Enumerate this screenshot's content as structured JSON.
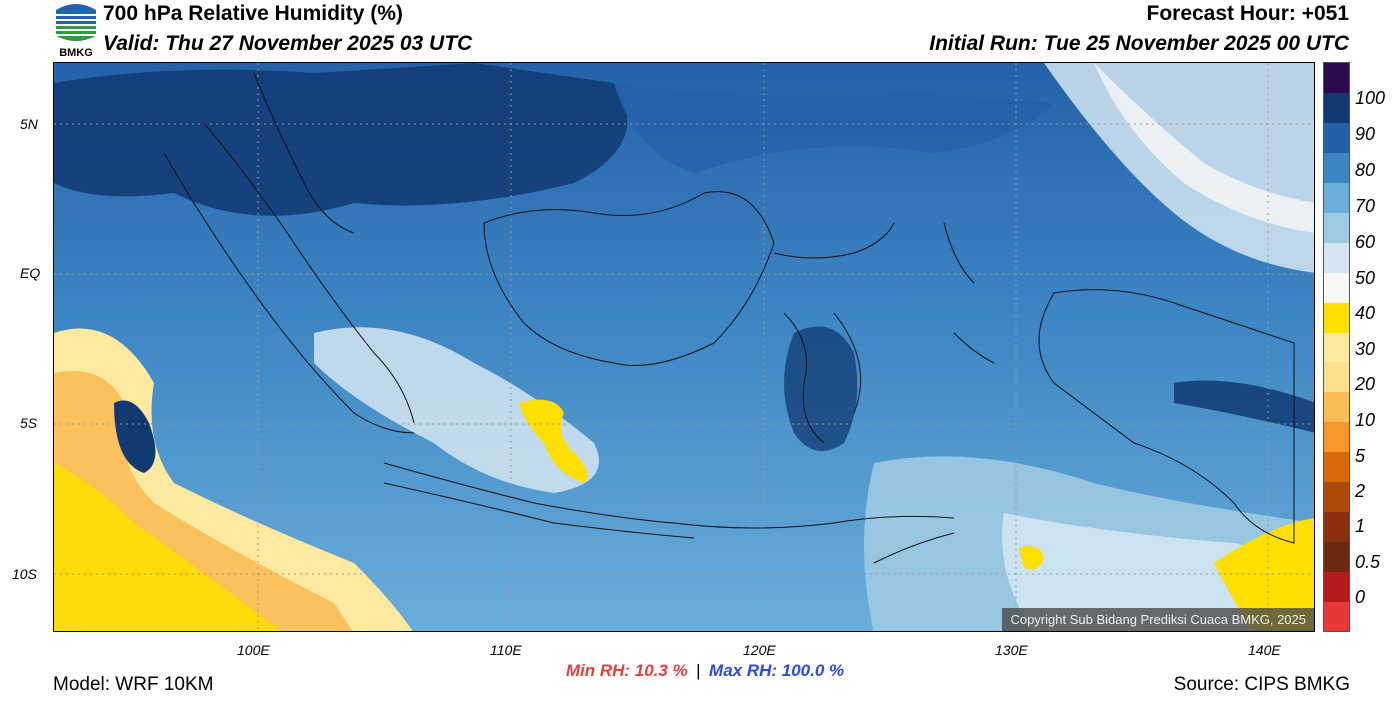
{
  "header": {
    "title": "700 hPa Relative Humidity (%)",
    "valid": "Valid: Thu 27 November 2025 03 UTC",
    "forecast_hour": "Forecast Hour: +051",
    "initial_run": "Initial Run: Tue 25 November 2025 00 UTC"
  },
  "logo": {
    "text": "BMKG"
  },
  "map": {
    "lat_labels": [
      "5N",
      "EQ",
      "5S",
      "10S"
    ],
    "lon_labels": [
      "100E",
      "110E",
      "120E",
      "130E",
      "140E"
    ],
    "copyright": "Copyright Sub Bidang Prediksi Cuaca BMKG, 2025"
  },
  "colorbar": {
    "labels": [
      "100",
      "90",
      "80",
      "70",
      "60",
      "50",
      "40",
      "30",
      "20",
      "10",
      "5",
      "2",
      "1",
      "0.5",
      "0"
    ],
    "colors": [
      "#e8383a",
      "#b51a1c",
      "#6e2810",
      "#8a3010",
      "#b04a0c",
      "#d86a0a",
      "#f7962a",
      "#fbbd55",
      "#fde08e",
      "#fdeaa0",
      "#fddf00",
      "#f7f7f7",
      "#d5e6f2",
      "#9ccae2",
      "#6aaedb",
      "#3d86c4",
      "#2561a9",
      "#113a73",
      "#2b0a4d"
    ]
  },
  "stats": {
    "min_label": "Min RH:  10.3 %",
    "separator": "|",
    "max_label": "Max RH: 100.0 %",
    "min_color": "#e83e3e",
    "max_color": "#2a4ae0"
  },
  "footer": {
    "model": "Model: WRF 10KM",
    "source": "Source: CIPS BMKG"
  }
}
